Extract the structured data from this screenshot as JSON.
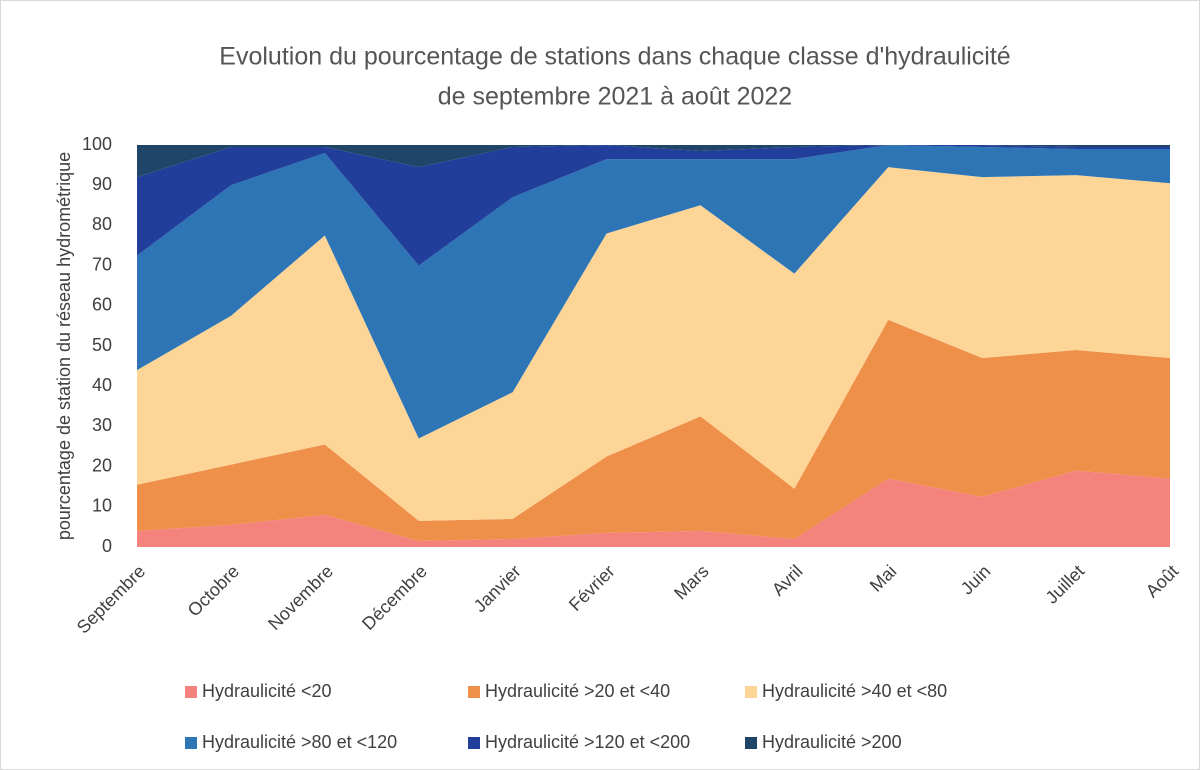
{
  "chart_data": {
    "type": "stacked_area",
    "title": [
      "Evolution du pourcentage de stations dans chaque classe d'hydraulicité",
      "de septembre 2021 à août 2022"
    ],
    "y_label": "pourcentage de station du réseau hydrométrique",
    "categories": [
      "Septembre",
      "Octobre",
      "Novembre",
      "Décembre",
      "Janvier",
      "Février",
      "Mars",
      "Avril",
      "Mai",
      "Juin",
      "Juillet",
      "Août"
    ],
    "ylim": [
      0,
      100
    ],
    "yticks": [
      0,
      10,
      20,
      30,
      40,
      50,
      60,
      70,
      80,
      90,
      100
    ],
    "grid": false,
    "legend": "bottom",
    "series": [
      {
        "name": "Hydraulicité <20",
        "color": "#f4837d",
        "values": [
          4,
          5.5,
          8,
          1.5,
          2,
          3.5,
          4,
          2,
          17,
          12.5,
          19,
          17
        ]
      },
      {
        "name": "Hydraulicité >20 et <40",
        "color": "#ee8f4a",
        "values": [
          11.5,
          15,
          17.5,
          5,
          5,
          19,
          28.5,
          12.5,
          39.5,
          34.5,
          30,
          30
        ]
      },
      {
        "name": "Hydraulicité >40 et <80",
        "color": "#fdd597",
        "values": [
          28.5,
          37,
          52,
          20.5,
          31.5,
          55.5,
          52.5,
          53.5,
          38,
          45,
          43.5,
          43.5
        ]
      },
      {
        "name": "Hydraulicité >80 et <120",
        "color": "#2e75b6",
        "values": [
          28.5,
          32.5,
          20.5,
          43,
          48.5,
          18.5,
          11.5,
          28.5,
          5.5,
          7.5,
          6.5,
          8.5
        ]
      },
      {
        "name": "Hydraulicité >120 et <200",
        "color": "#203e9a",
        "values": [
          19.5,
          9.5,
          1.5,
          24.5,
          12.5,
          3.5,
          2,
          3,
          0,
          0.5,
          0.5,
          0.5
        ]
      },
      {
        "name": "Hydraulicité >200",
        "color": "#1f4668",
        "values": [
          8,
          0.5,
          0.5,
          5.5,
          0.5,
          0,
          1.5,
          0.5,
          0,
          0,
          0.5,
          0.5
        ]
      }
    ]
  }
}
